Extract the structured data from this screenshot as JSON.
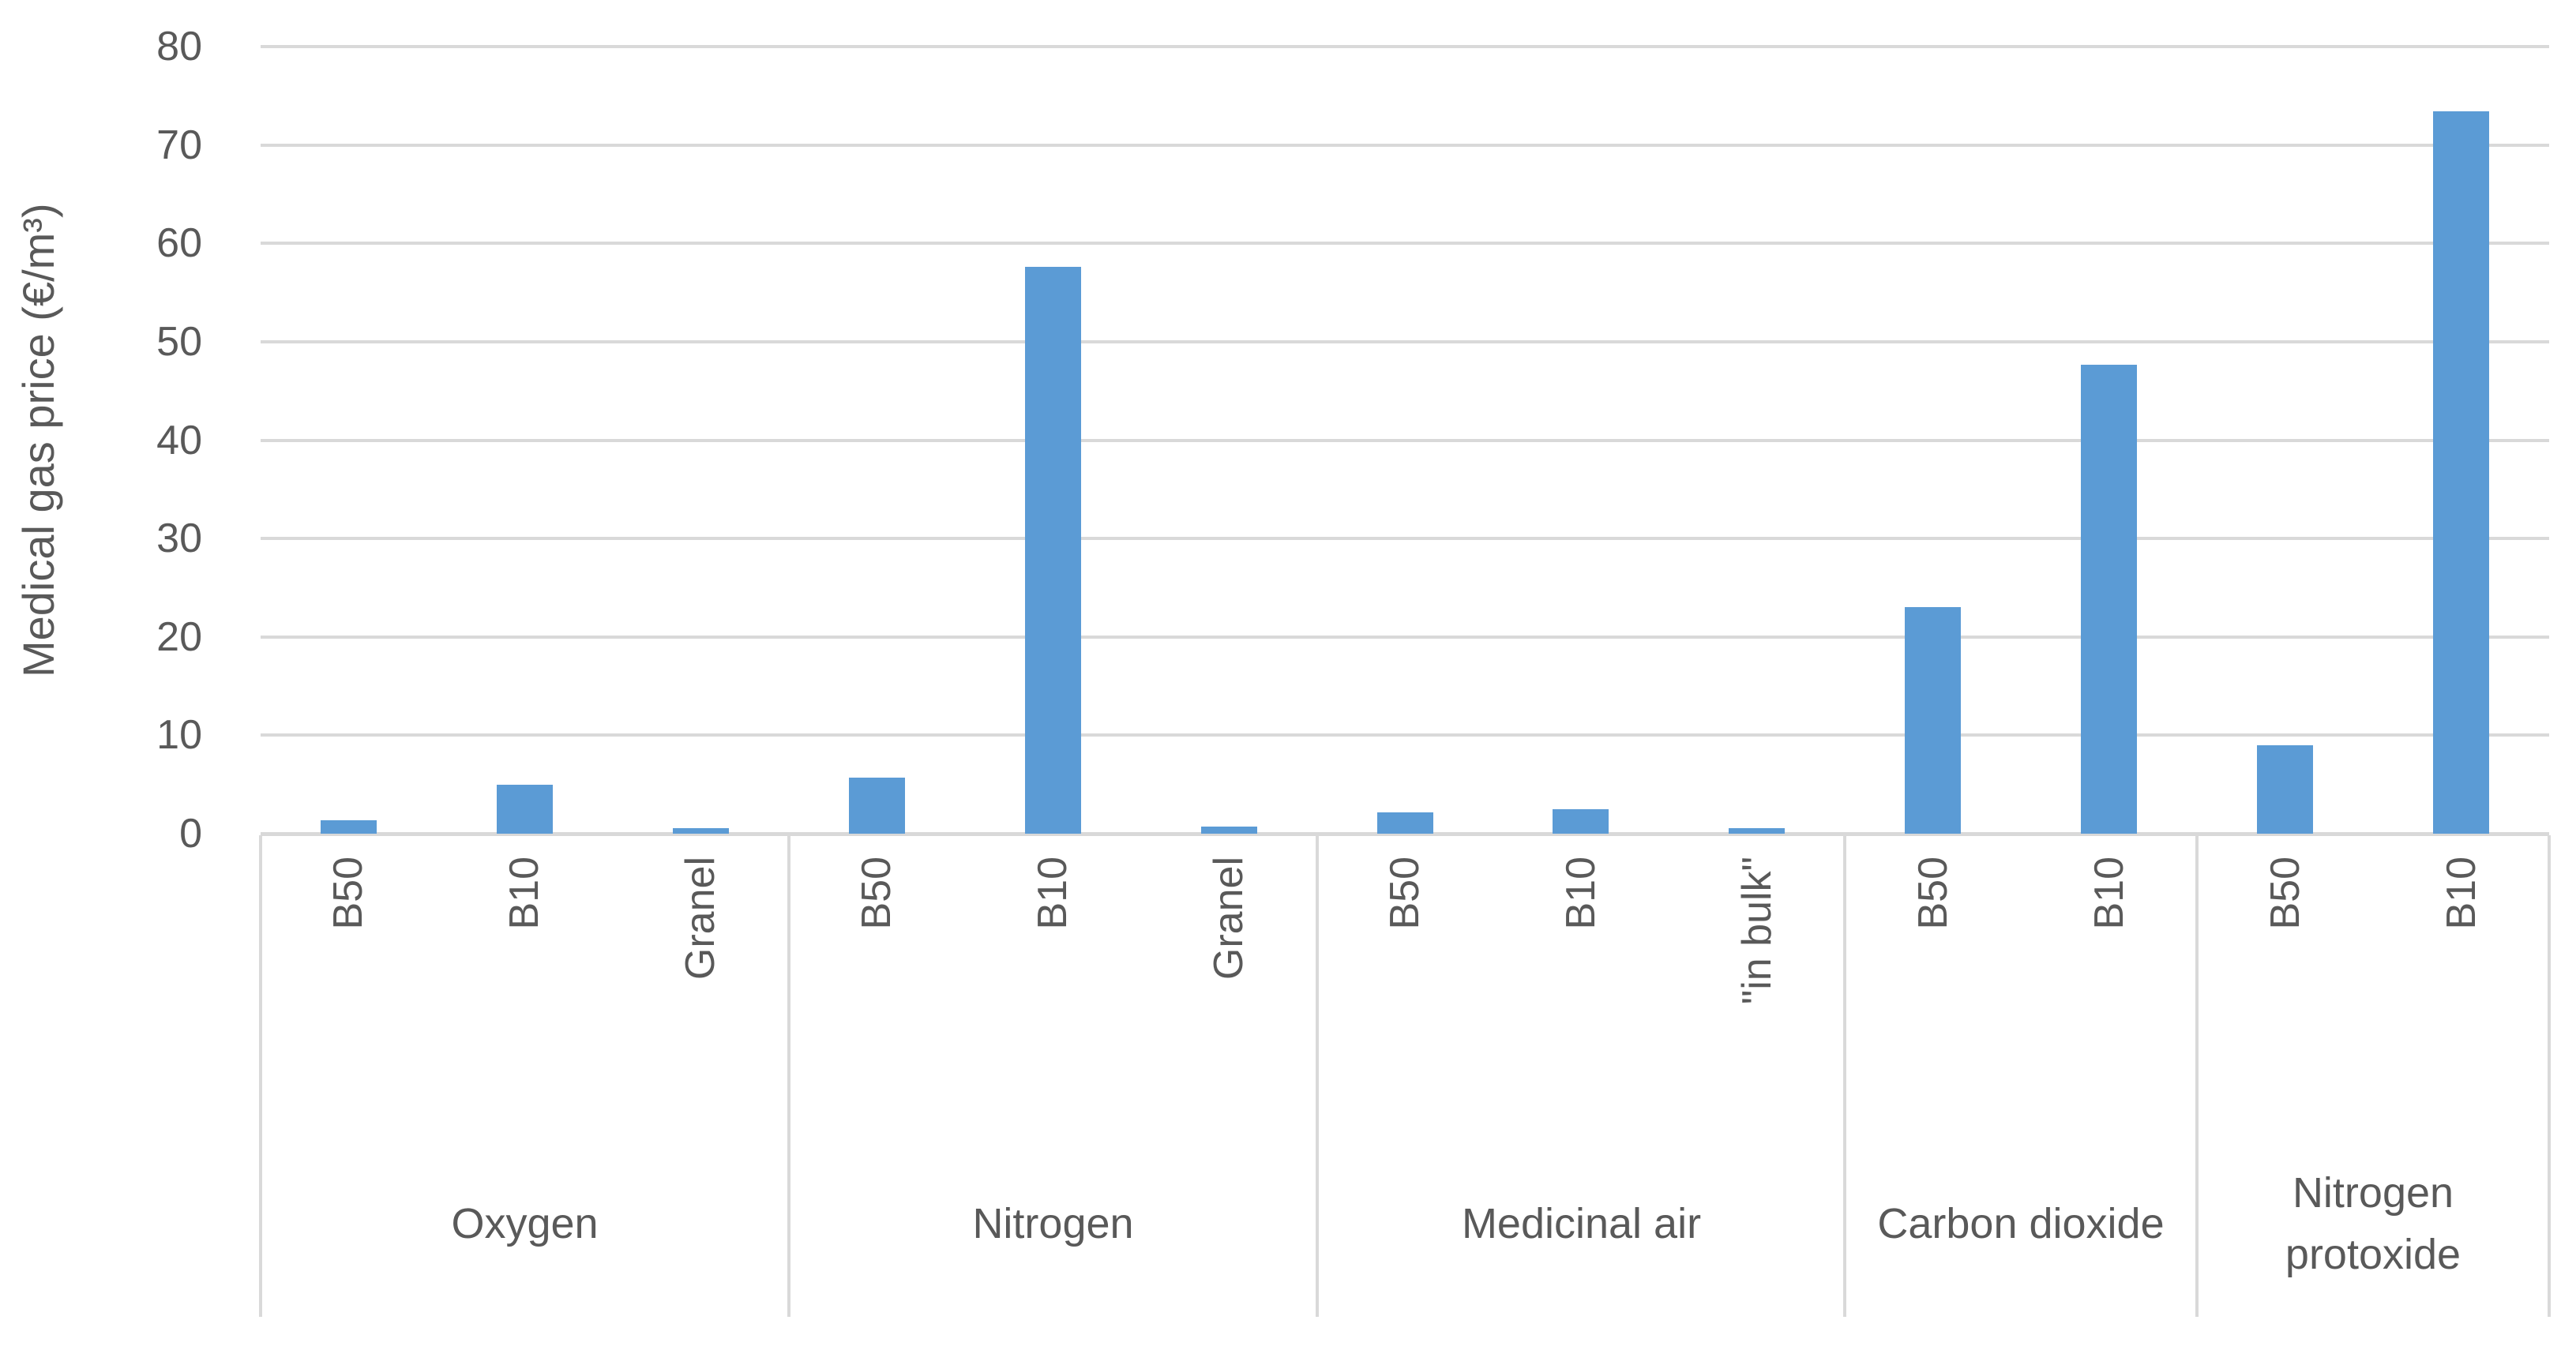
{
  "chart_data": {
    "type": "bar",
    "title": "",
    "xlabel": "",
    "ylabel": "Medical gas price (€/m³)",
    "ylim": [
      0,
      80
    ],
    "yticks": [
      0,
      10,
      20,
      30,
      40,
      50,
      60,
      70,
      80
    ],
    "grid": true,
    "legend": "none",
    "bar_color": "#5b9bd5",
    "gridline_color": "#d9d9d9",
    "text_color": "#595959",
    "groups": [
      {
        "label": "Oxygen",
        "bars": [
          {
            "label": "B50",
            "value": 1.4
          },
          {
            "label": "B10",
            "value": 5.0
          },
          {
            "label": "Granel",
            "value": 0.6
          }
        ]
      },
      {
        "label": "Nitrogen",
        "bars": [
          {
            "label": "B50",
            "value": 5.7
          },
          {
            "label": "B10",
            "value": 57.6
          },
          {
            "label": "Granel",
            "value": 0.7
          }
        ]
      },
      {
        "label": "Medicinal air",
        "bars": [
          {
            "label": "B50",
            "value": 2.2
          },
          {
            "label": "B10",
            "value": 2.5
          },
          {
            "label": "\"in bulk\"",
            "value": 0.6
          }
        ]
      },
      {
        "label": "Carbon dioxide",
        "bars": [
          {
            "label": "B50",
            "value": 23.0
          },
          {
            "label": "B10",
            "value": 47.7
          }
        ]
      },
      {
        "label": "Nitrogen protoxide",
        "bars": [
          {
            "label": "B50",
            "value": 9.0
          },
          {
            "label": "B10",
            "value": 73.4
          }
        ]
      }
    ]
  }
}
